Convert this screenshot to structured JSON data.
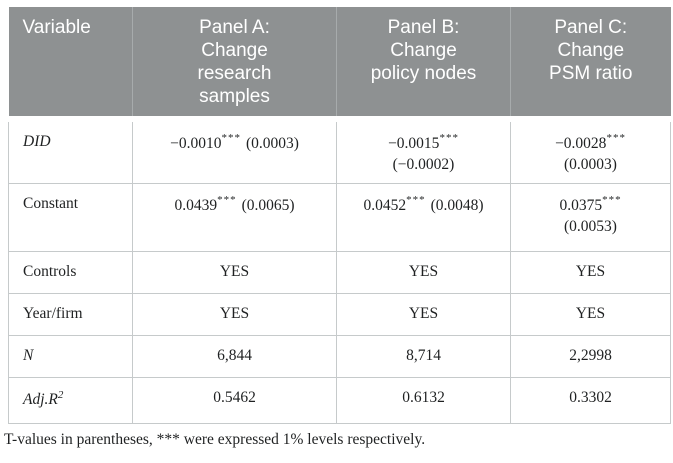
{
  "header": {
    "variable": "Variable",
    "panels": [
      [
        "Panel A:",
        "Change",
        "research",
        "samples"
      ],
      [
        "Panel B:",
        "Change",
        "policy nodes"
      ],
      [
        "Panel C:",
        "Change",
        "PSM ratio"
      ]
    ]
  },
  "rows": {
    "did": {
      "label": "DID",
      "cells": [
        {
          "value": "−0.0010",
          "stars": "***",
          "se": "(0.0003)"
        },
        {
          "value": "−0.0015",
          "stars": "***",
          "se": "(−0.0002)"
        },
        {
          "value": "−0.0028",
          "stars": "***",
          "se": "(0.0003)"
        }
      ]
    },
    "constant": {
      "label": "Constant",
      "cells": [
        {
          "value": "0.0439",
          "stars": "***",
          "se": "(0.0065)"
        },
        {
          "value": "0.0452",
          "stars": "***",
          "se": "(0.0048)"
        },
        {
          "value": "0.0375",
          "stars": "***",
          "se": "(0.0053)"
        }
      ]
    },
    "controls": {
      "label": "Controls",
      "cells": [
        "YES",
        "YES",
        "YES"
      ]
    },
    "year_firm": {
      "label": "Year/firm",
      "cells": [
        "YES",
        "YES",
        "YES"
      ]
    },
    "n": {
      "label": "N",
      "cells": [
        "6,844",
        "8,714",
        "2,2998"
      ]
    },
    "adj_r2": {
      "label": "Adj.R",
      "label_sup": "2",
      "cells": [
        "0.5462",
        "0.6132",
        "0.3302"
      ]
    }
  },
  "footnote": "T-values in parentheses, *** were expressed 1% levels respectively.",
  "colors": {
    "header_bg": "#8e9192",
    "header_text": "#ffffff",
    "header_divider": "#a7abac",
    "body_border": "#c6cacb",
    "body_text": "#1f2122"
  }
}
